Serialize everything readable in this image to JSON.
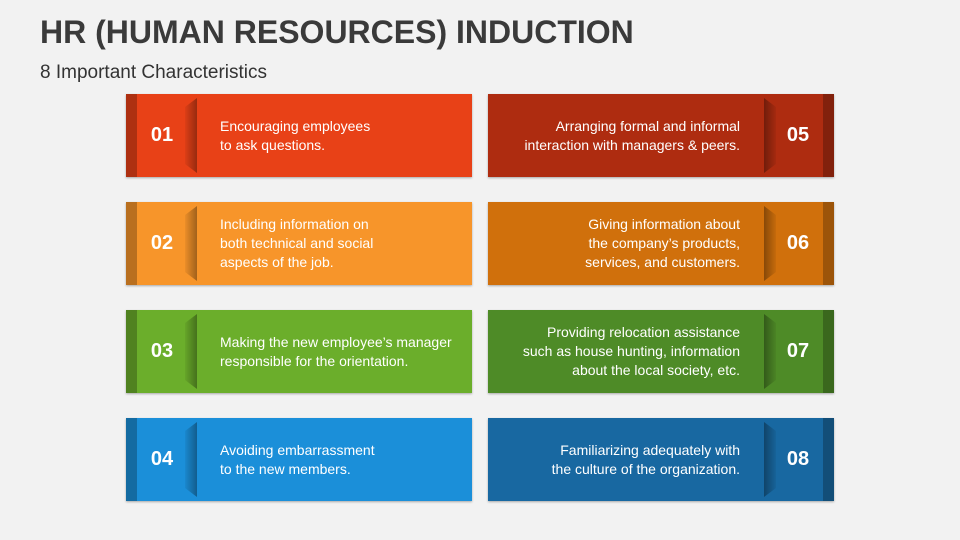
{
  "title": "HR (HUMAN RESOURCES) INDUCTION",
  "subtitle": "8 Important Characteristics",
  "items": [
    {
      "num": "01",
      "text": "Encouraging employees\nto ask questions.",
      "color": "#E84117"
    },
    {
      "num": "02",
      "text": "Including information on\nboth technical and social\naspects of the job.",
      "color": "#F7952A"
    },
    {
      "num": "03",
      "text": "Making the new employee’s manager\nresponsible for the orientation.",
      "color": "#6BAE2B"
    },
    {
      "num": "04",
      "text": "Avoiding embarrassment\nto the new members.",
      "color": "#1B8FD9"
    },
    {
      "num": "05",
      "text": "Arranging formal and informal\ninteraction with managers & peers.",
      "color": "#AE2C10"
    },
    {
      "num": "06",
      "text": "Giving information about\nthe company’s products,\nservices, and customers.",
      "color": "#D0700C"
    },
    {
      "num": "07",
      "text": "Providing relocation assistance\nsuch as house hunting, information\nabout the local society, etc.",
      "color": "#4E8B27"
    },
    {
      "num": "08",
      "text": "Familiarizing adequately with\nthe culture of the organization.",
      "color": "#1868A1"
    }
  ]
}
